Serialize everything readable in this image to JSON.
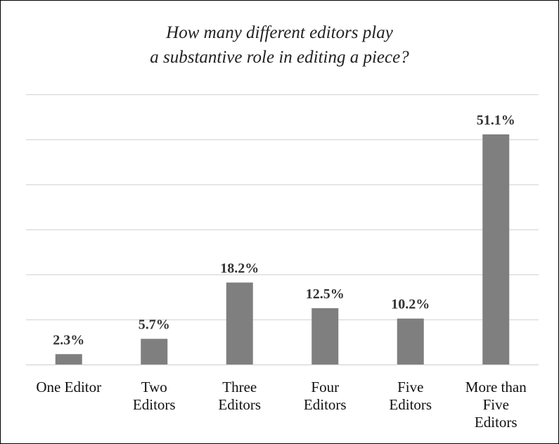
{
  "chart_data": {
    "type": "bar",
    "title_lines": [
      "How many different editors play",
      "a substantive role in editing a piece?"
    ],
    "categories": [
      [
        "One Editor"
      ],
      [
        "Two",
        "Editors"
      ],
      [
        "Three",
        "Editors"
      ],
      [
        "Four",
        "Editors"
      ],
      [
        "Five",
        "Editors"
      ],
      [
        "More than",
        "Five",
        "Editors"
      ]
    ],
    "values": [
      2.3,
      5.7,
      18.2,
      12.5,
      10.2,
      51.1
    ],
    "data_labels": [
      "2.3%",
      "5.7%",
      "18.2%",
      "12.5%",
      "10.2%",
      "51.1%"
    ],
    "xlabel": "",
    "ylabel": "",
    "ylim": [
      0,
      60
    ],
    "yticks": [
      0,
      10,
      20,
      30,
      40,
      50,
      60
    ],
    "grid": true,
    "bar_color": "#7f7f7f",
    "grid_color": "#d9d9d9"
  }
}
